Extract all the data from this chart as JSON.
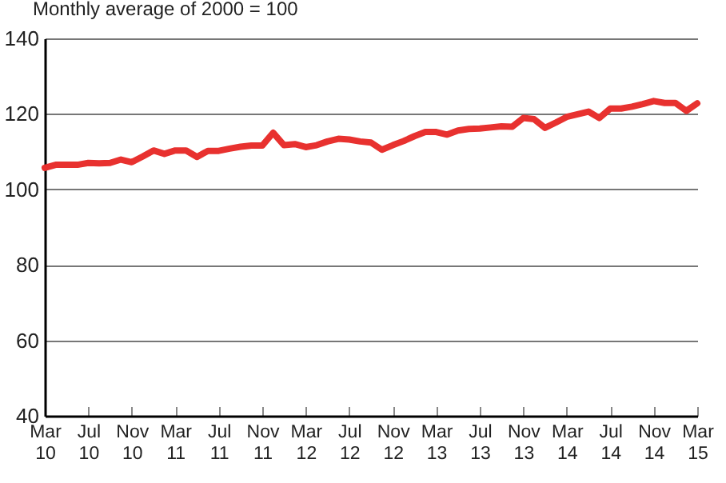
{
  "chart_data": {
    "type": "line",
    "ylabel": "Monthly average of 2000 = 100",
    "categories": [
      "Mar 10",
      null,
      null,
      null,
      "Jul 10",
      null,
      null,
      null,
      "Nov 10",
      null,
      null,
      null,
      "Mar 11",
      null,
      null,
      null,
      "Jul 11",
      null,
      null,
      null,
      "Nov 11",
      null,
      null,
      null,
      "Mar 12",
      null,
      null,
      null,
      "Jul 12",
      null,
      null,
      null,
      "Nov 12",
      null,
      null,
      null,
      "Mar 13",
      null,
      null,
      null,
      "Jul 13",
      null,
      null,
      null,
      "Nov 13",
      null,
      null,
      null,
      "Mar 14",
      null,
      null,
      null,
      "Jul 14",
      null,
      null,
      null,
      "Nov 14",
      null,
      null,
      null,
      "Mar 15"
    ],
    "series": [
      {
        "color": "#e8312f",
        "values": [
          105.7,
          106.5,
          106.5,
          106.5,
          107,
          106.9,
          107,
          107.9,
          107.2,
          108.7,
          110.3,
          109.4,
          110.3,
          110.3,
          108.6,
          110.2,
          110.2,
          110.8,
          111.3,
          111.6,
          111.6,
          115,
          111.7,
          112,
          111.2,
          111.7,
          112.7,
          113.4,
          113.2,
          112.7,
          112.4,
          110.5,
          111.7,
          112.8,
          114.1,
          115.2,
          115.2,
          114.5,
          115.6,
          116,
          116.1,
          116.4,
          116.7,
          116.6,
          118.9,
          118.6,
          116.3,
          117.7,
          119.2,
          119.9,
          120.6,
          118.9,
          121.4,
          121.4,
          121.9,
          122.6,
          123.4,
          122.9,
          122.9,
          120.8,
          122.8
        ]
      }
    ],
    "ylim": [
      40,
      140
    ],
    "yticks": [
      40,
      60,
      80,
      100,
      120,
      140
    ],
    "grid": "y",
    "marker": "none",
    "line_style": "solid"
  }
}
